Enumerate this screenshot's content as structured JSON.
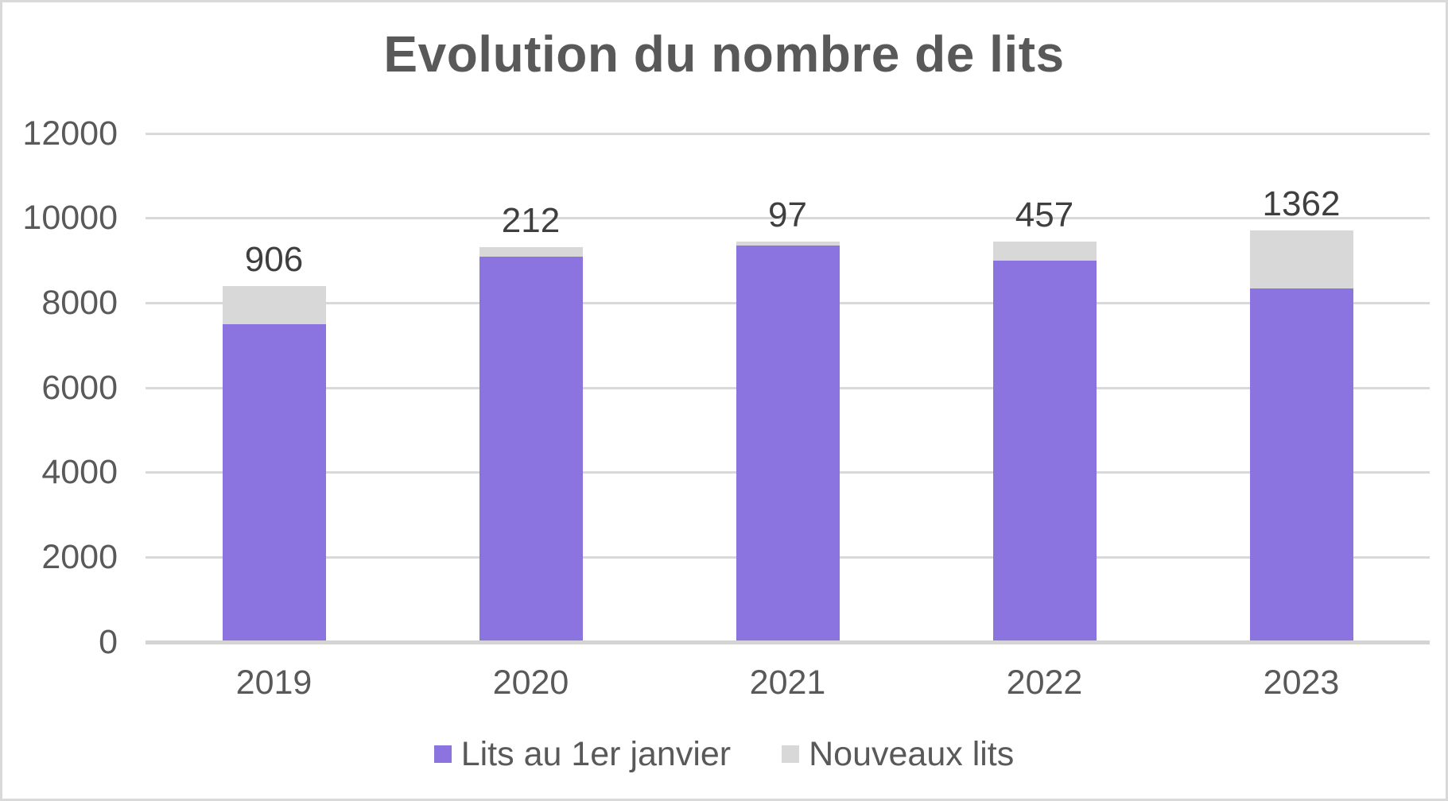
{
  "title": "Evolution du nombre de lits",
  "colors": {
    "bar_purple": "#8b74e0",
    "bar_gray": "#d8d8d8",
    "gridline": "#d9d9d9",
    "axis_line": "#d4d4d4",
    "text_gray": "#595959",
    "data_label": "#3f3f3f",
    "frame_border": "#d9d9d9"
  },
  "chart_data": {
    "type": "bar",
    "stacked": true,
    "title": "Evolution du nombre de lits",
    "categories": [
      "2019",
      "2020",
      "2021",
      "2022",
      "2023"
    ],
    "series": [
      {
        "name": "Lits au 1er janvier",
        "color": "#8b74e0",
        "values": [
          7500,
          9100,
          9350,
          9000,
          8350
        ]
      },
      {
        "name": "Nouveaux lits",
        "color": "#d8d8d8",
        "values": [
          906,
          212,
          97,
          457,
          1362
        ]
      }
    ],
    "data_labels": {
      "series": "Nouveaux lits",
      "values": [
        "906",
        "212",
        "97",
        "457",
        "1362"
      ]
    },
    "totals": [
      8406,
      9312,
      9447,
      9457,
      9712
    ],
    "xlabel": "",
    "ylabel": "",
    "ylim": [
      0,
      12000
    ],
    "yticks": [
      0,
      2000,
      4000,
      6000,
      8000,
      10000,
      12000
    ],
    "grid": true,
    "legend_position": "bottom"
  }
}
